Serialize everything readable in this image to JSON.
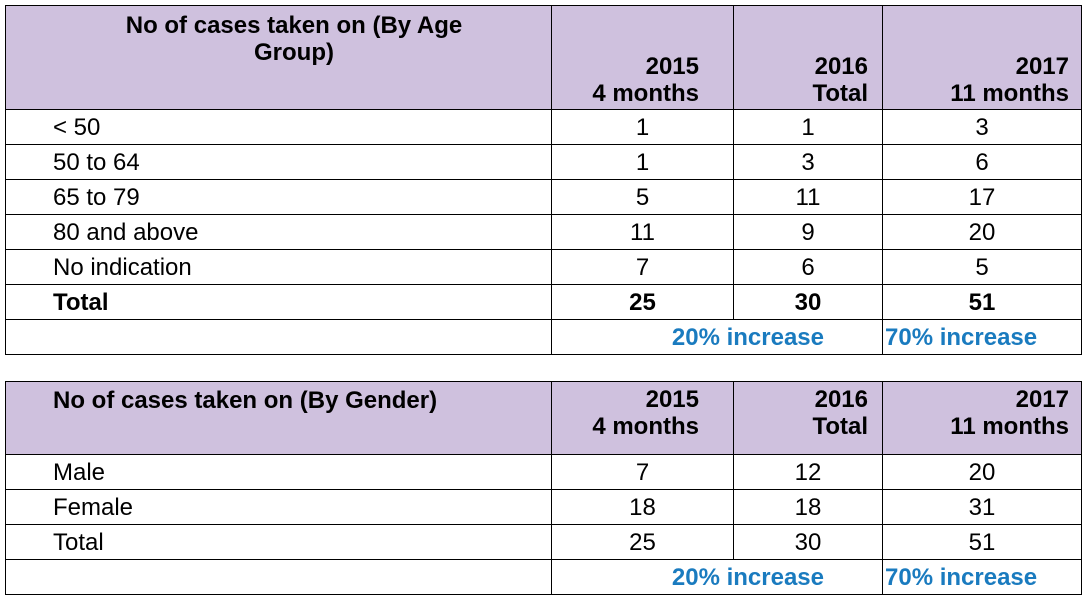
{
  "age_table": {
    "header": {
      "title": "No of cases taken on (By Age Group)",
      "col2_year": "2015",
      "col2_sub": "4 months",
      "col3_year": "2016",
      "col3_sub": "Total",
      "col4_year": "2017",
      "col4_sub": "11 months"
    },
    "rows": [
      {
        "label": "< 50",
        "v2015": "1",
        "v2016": "1",
        "v2017": "3"
      },
      {
        "label": "50 to 64",
        "v2015": "1",
        "v2016": "3",
        "v2017": "6"
      },
      {
        "label": "65 to 79",
        "v2015": "5",
        "v2016": "11",
        "v2017": "17"
      },
      {
        "label": "80 and above",
        "v2015": "11",
        "v2016": "9",
        "v2017": "20"
      },
      {
        "label": "No indication",
        "v2015": "7",
        "v2016": "6",
        "v2017": "5"
      }
    ],
    "total": {
      "label": "Total",
      "v2015": "25",
      "v2016": "30",
      "v2017": "51"
    },
    "increase_2016": "20% increase",
    "increase_2017": "70% increase"
  },
  "gender_table": {
    "header": {
      "title": "No of cases taken on (By Gender)",
      "col2_year": "2015",
      "col2_sub": "4 months",
      "col3_year": "2016",
      "col3_sub": "Total",
      "col4_year": "2017",
      "col4_sub": "11 months"
    },
    "rows": [
      {
        "label": "Male",
        "v2015": "7",
        "v2016": "12",
        "v2017": "20"
      },
      {
        "label": "Female",
        "v2015": "18",
        "v2016": "18",
        "v2017": "31"
      },
      {
        "label": "Total",
        "v2015": "25",
        "v2016": "30",
        "v2017": "51"
      }
    ],
    "increase_2016": "20% increase",
    "increase_2017": "70% increase"
  },
  "colors": {
    "header_bg": "#cfc1de",
    "increase_text": "#1a7bbf"
  }
}
